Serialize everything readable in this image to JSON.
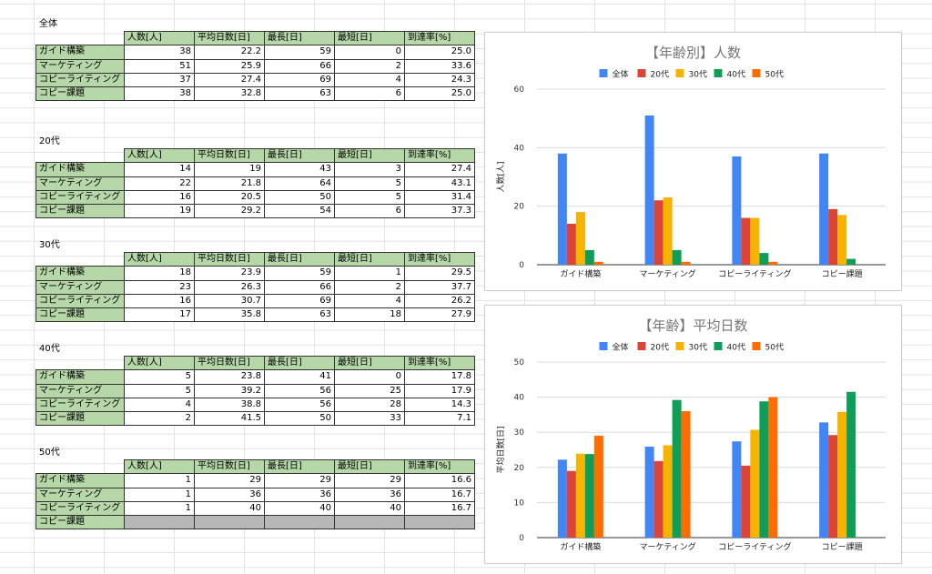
{
  "sheet": {
    "columns": [
      "人数[人]",
      "平均日数[日]",
      "最長[日]",
      "最短[日]",
      "到達率[%]"
    ],
    "blocks": [
      {
        "title": "全体",
        "rows": [
          {
            "label": "ガイド構築",
            "values": [
              "38",
              "22.2",
              "59",
              "0",
              "25.0"
            ]
          },
          {
            "label": "マーケティング",
            "values": [
              "51",
              "25.9",
              "66",
              "2",
              "33.6"
            ]
          },
          {
            "label": "コピーライティング",
            "values": [
              "37",
              "27.4",
              "69",
              "4",
              "24.3"
            ]
          },
          {
            "label": "コピー課題",
            "values": [
              "38",
              "32.8",
              "63",
              "6",
              "25.0"
            ]
          }
        ]
      },
      {
        "title": "20代",
        "rows": [
          {
            "label": "ガイド構築",
            "values": [
              "14",
              "19",
              "43",
              "3",
              "27.4"
            ]
          },
          {
            "label": "マーケティング",
            "values": [
              "22",
              "21.8",
              "64",
              "5",
              "43.1"
            ]
          },
          {
            "label": "コピーライティング",
            "values": [
              "16",
              "20.5",
              "50",
              "5",
              "31.4"
            ]
          },
          {
            "label": "コピー課題",
            "values": [
              "19",
              "29.2",
              "54",
              "6",
              "37.3"
            ]
          }
        ]
      },
      {
        "title": "30代",
        "rows": [
          {
            "label": "ガイド構築",
            "values": [
              "18",
              "23.9",
              "59",
              "1",
              "29.5"
            ]
          },
          {
            "label": "マーケティング",
            "values": [
              "23",
              "26.3",
              "66",
              "2",
              "37.7"
            ]
          },
          {
            "label": "コピーライティング",
            "values": [
              "16",
              "30.7",
              "69",
              "4",
              "26.2"
            ]
          },
          {
            "label": "コピー課題",
            "values": [
              "17",
              "35.8",
              "63",
              "18",
              "27.9"
            ]
          }
        ]
      },
      {
        "title": "40代",
        "rows": [
          {
            "label": "ガイド構築",
            "values": [
              "5",
              "23.8",
              "41",
              "0",
              "17.8"
            ]
          },
          {
            "label": "マーケティング",
            "values": [
              "5",
              "39.2",
              "56",
              "25",
              "17.9"
            ]
          },
          {
            "label": "コピーライティング",
            "values": [
              "4",
              "38.8",
              "56",
              "28",
              "14.3"
            ]
          },
          {
            "label": "コピー課題",
            "values": [
              "2",
              "41.5",
              "50",
              "33",
              "7.1"
            ]
          }
        ]
      },
      {
        "title": "50代",
        "rows": [
          {
            "label": "ガイド構築",
            "values": [
              "1",
              "29",
              "29",
              "29",
              "16.6"
            ]
          },
          {
            "label": "マーケティング",
            "values": [
              "1",
              "36",
              "36",
              "36",
              "16.7"
            ]
          },
          {
            "label": "コピーライティング",
            "values": [
              "1",
              "40",
              "40",
              "40",
              "16.7"
            ]
          },
          {
            "label": "コピー課題",
            "values": [
              "",
              "",
              "",
              "",
              ""
            ],
            "empty": true
          }
        ]
      }
    ]
  },
  "series_colors": [
    "#4285f4",
    "#db4437",
    "#f4b400",
    "#0f9d58",
    "#ff6d01"
  ],
  "chart_data": [
    {
      "type": "bar",
      "title": "【年齢別】人数",
      "xlabel": "",
      "ylabel": "人数[人]",
      "ylim": [
        0,
        60
      ],
      "yticks": [
        0,
        20,
        40,
        60
      ],
      "grid": true,
      "legend": "top",
      "categories": [
        "ガイド構築",
        "マーケティング",
        "コピーライティング",
        "コピー課題"
      ],
      "series": [
        {
          "name": "全体",
          "values": [
            38,
            51,
            37,
            38
          ]
        },
        {
          "name": "20代",
          "values": [
            14,
            22,
            16,
            19
          ]
        },
        {
          "name": "30代",
          "values": [
            18,
            23,
            16,
            17
          ]
        },
        {
          "name": "40代",
          "values": [
            5,
            5,
            4,
            2
          ]
        },
        {
          "name": "50代",
          "values": [
            1,
            1,
            1,
            0
          ]
        }
      ]
    },
    {
      "type": "bar",
      "title": "【年齢】平均日数",
      "xlabel": "",
      "ylabel": "平均日数[日]",
      "ylim": [
        0,
        50
      ],
      "yticks": [
        0,
        10,
        20,
        30,
        40,
        50
      ],
      "grid": true,
      "legend": "top",
      "categories": [
        "ガイド構築",
        "マーケティング",
        "コピーライティング",
        "コピー課題"
      ],
      "series": [
        {
          "name": "全体",
          "values": [
            22.2,
            25.9,
            27.4,
            32.8
          ]
        },
        {
          "name": "20代",
          "values": [
            19,
            21.8,
            20.5,
            29.2
          ]
        },
        {
          "name": "30代",
          "values": [
            23.9,
            26.3,
            30.7,
            35.8
          ]
        },
        {
          "name": "40代",
          "values": [
            23.8,
            39.2,
            38.8,
            41.5
          ]
        },
        {
          "name": "50代",
          "values": [
            29,
            36,
            40,
            0
          ]
        }
      ]
    }
  ]
}
